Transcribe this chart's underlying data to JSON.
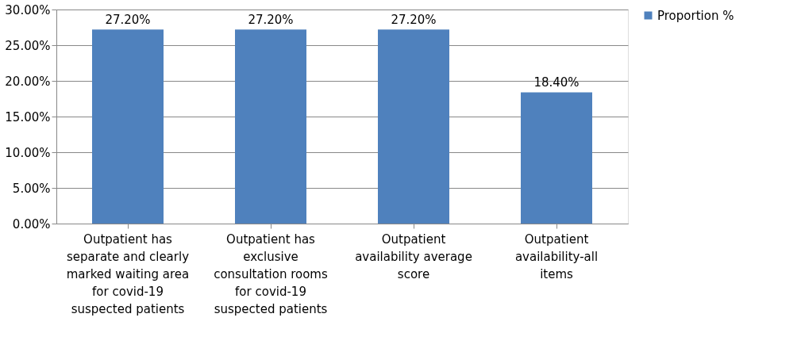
{
  "chart_data": {
    "type": "bar",
    "categories": [
      "Outpatient has separate and clearly marked waiting area for covid-19 suspected patients",
      "Outpatient has exclusive consultation rooms for covid-19 suspected patients",
      "Outpatient availability average score",
      "Outpatient availability-all items"
    ],
    "series": [
      {
        "name": "Proportion %",
        "color": "#4f81bd",
        "values": [
          27.2,
          27.2,
          27.2,
          18.4
        ],
        "value_labels": [
          "27.20%",
          "27.20%",
          "27.20%",
          "18.40%"
        ]
      }
    ],
    "ylim": [
      0,
      30
    ],
    "yticks": [
      {
        "value": 0,
        "label": "0.00%"
      },
      {
        "value": 5,
        "label": "5.00%"
      },
      {
        "value": 10,
        "label": "10.00%"
      },
      {
        "value": 15,
        "label": "15.00%"
      },
      {
        "value": 20,
        "label": "20.00%"
      },
      {
        "value": 25,
        "label": "25.00%"
      },
      {
        "value": 30,
        "label": "30.00%"
      }
    ],
    "grid": "y",
    "legend": "right"
  }
}
